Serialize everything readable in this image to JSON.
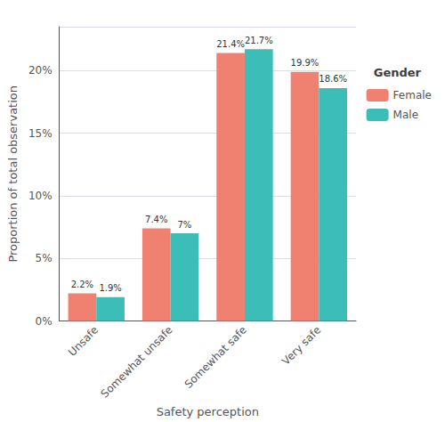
{
  "chart_data": {
    "type": "bar",
    "categories": [
      "Unsafe",
      "Somewhat unsafe",
      "Somewhat safe",
      "Very safe"
    ],
    "series": [
      {
        "name": "Female",
        "color": "#F08070",
        "values": [
          2.2,
          7.4,
          21.4,
          19.9
        ],
        "value_labels": [
          "2.2%",
          "7.4%",
          "21.4%",
          "19.9%"
        ]
      },
      {
        "name": "Male",
        "color": "#3DBDB8",
        "values": [
          1.9,
          7.0,
          21.7,
          18.6
        ],
        "value_labels": [
          "1.9%",
          "7%",
          "21.7%",
          "18.6%"
        ]
      }
    ],
    "xlabel": "Safety perception",
    "ylabel": "Proportion of total observation",
    "legend_title": "Gender",
    "ylim": [
      0,
      23.5
    ],
    "yticks": [
      {
        "value": 0,
        "label": "0%"
      },
      {
        "value": 5,
        "label": "5%"
      },
      {
        "value": 10,
        "label": "10%"
      },
      {
        "value": 15,
        "label": "15%"
      },
      {
        "value": 20,
        "label": "20%"
      }
    ],
    "grid": true,
    "legend": "upper right",
    "data_labels": true
  }
}
